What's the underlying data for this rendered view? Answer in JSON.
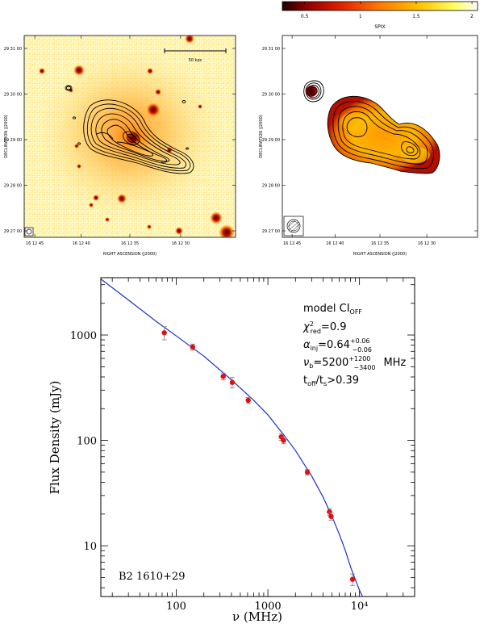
{
  "colorbar": {
    "label": "SPIX",
    "ticks": [
      {
        "label": "0.5",
        "value": 0.5
      },
      {
        "label": "1",
        "value": 1.0
      },
      {
        "label": "1.5",
        "value": 1.5
      },
      {
        "label": "2",
        "value": 2.0
      }
    ],
    "range": [
      0.3,
      2.05
    ],
    "colors": [
      "#1a0000",
      "#8b0000",
      "#e02000",
      "#ff7a00",
      "#ffc000",
      "#ffff60",
      "#ffffff"
    ]
  },
  "left_panel": {
    "xlabel": "RIGHT ASCENSION (J2000)",
    "ylabel": "DECLINATION (J2000)",
    "x_ticks": [
      "16 12 45",
      "16 12 40",
      "16 12 35",
      "16 12 30"
    ],
    "y_ticks": [
      "29 31 00",
      "29 30 00",
      "29 29 00",
      "29 28 00",
      "29 27 00"
    ],
    "scale_bar_label": "50 kpc"
  },
  "right_panel": {
    "xlabel": "RIGHT ASCENSION (J2000)",
    "ylabel": "DECLINATION (J2000)",
    "x_ticks": [
      "16 12 45",
      "16 12 40",
      "16 12 35",
      "16 12 30"
    ],
    "y_ticks": [
      "29 31 00",
      "29 30 00",
      "29 29 00",
      "29 28 00",
      "29 27 00"
    ]
  },
  "chart_data": {
    "type": "scatter",
    "title": "",
    "source_label": "B2 1610+29",
    "xlabel": "ν (MHz)",
    "ylabel": "Flux Density (mJy)",
    "xscale": "log",
    "yscale": "log",
    "xlim": [
      15,
      40000
    ],
    "ylim": [
      3.3,
      3500
    ],
    "x_ticks": [
      {
        "label": "100",
        "value": 100
      },
      {
        "label": "1000",
        "value": 1000
      },
      {
        "label": "10⁴",
        "value": 10000
      }
    ],
    "y_ticks": [
      {
        "label": "10",
        "value": 10
      },
      {
        "label": "100",
        "value": 100
      },
      {
        "label": "1000",
        "value": 1000
      }
    ],
    "annotations": {
      "model": "model CI",
      "model_sub": "OFF",
      "chi2": "=0.9",
      "alpha": "=0.64",
      "alpha_plus": "+0.06",
      "alpha_minus": "−0.06",
      "nub": "=5200",
      "nub_plus": "+1200",
      "nub_minus": "−3400",
      "nub_unit": "MHz",
      "toff": "t",
      "toff_rest": ">0.39"
    },
    "points": [
      {
        "x": 74,
        "y": 1050,
        "err": 150
      },
      {
        "x": 151,
        "y": 770,
        "err": 50
      },
      {
        "x": 325,
        "y": 405,
        "err": 30
      },
      {
        "x": 408,
        "y": 355,
        "err": 40
      },
      {
        "x": 610,
        "y": 240,
        "err": 15
      },
      {
        "x": 1400,
        "y": 108,
        "err": 8
      },
      {
        "x": 1480,
        "y": 100,
        "err": 7
      },
      {
        "x": 2700,
        "y": 50,
        "err": 3
      },
      {
        "x": 4700,
        "y": 21,
        "err": 1.5
      },
      {
        "x": 4900,
        "y": 19,
        "err": 1.5
      },
      {
        "x": 8400,
        "y": 4.8,
        "err": 0.6
      }
    ],
    "model_curve": [
      {
        "x": 15,
        "y": 3400
      },
      {
        "x": 30,
        "y": 2150
      },
      {
        "x": 60,
        "y": 1350
      },
      {
        "x": 100,
        "y": 980
      },
      {
        "x": 200,
        "y": 630
      },
      {
        "x": 400,
        "y": 375
      },
      {
        "x": 700,
        "y": 240
      },
      {
        "x": 1000,
        "y": 175
      },
      {
        "x": 1500,
        "y": 112
      },
      {
        "x": 2000,
        "y": 80
      },
      {
        "x": 3000,
        "y": 46
      },
      {
        "x": 4000,
        "y": 29
      },
      {
        "x": 5000,
        "y": 19
      },
      {
        "x": 6000,
        "y": 13
      },
      {
        "x": 7000,
        "y": 9
      },
      {
        "x": 8000,
        "y": 6.3
      },
      {
        "x": 9000,
        "y": 4.8
      },
      {
        "x": 10000,
        "y": 3.8
      },
      {
        "x": 10800,
        "y": 3.3
      }
    ]
  }
}
